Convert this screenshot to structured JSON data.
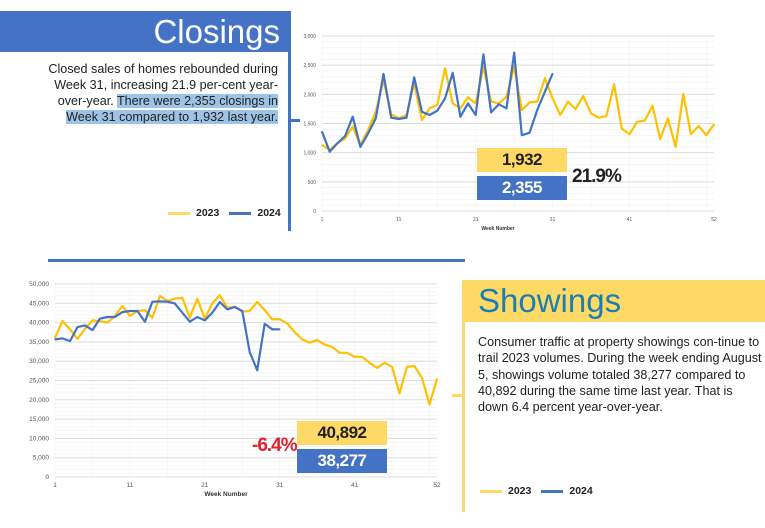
{
  "closings": {
    "title": "Closings",
    "text_plain": "Closed sales of homes rebounded during Week 31, increasing 21.9 per-cent year-over-year. ",
    "text_highlight": "There were 2,355 closings in Week 31 compared to 1,932 last year.",
    "legend": [
      "2023",
      "2024"
    ],
    "callout_2023": "1,932",
    "callout_2024": "2,355",
    "change": "21.9%"
  },
  "showings": {
    "title": "Showings",
    "text": "Consumer traffic at property showings con-tinue to trail 2023 volumes. During the week ending August 5, showings volume totaled 38,277 compared to 40,892 during the same time last year. That is down 6.4 percent year-over-year.",
    "legend": [
      "2023",
      "2024"
    ],
    "callout_2023": "40,892",
    "callout_2024": "38,277",
    "change": "-6.4%"
  },
  "colors": {
    "y2023": "#ffc000",
    "y2024": "#4472c4",
    "negative": "#e0202a"
  },
  "chart_data": [
    {
      "type": "line",
      "title": "Closings",
      "xlabel": "Week Number",
      "ylabel": "",
      "ylim": [
        0,
        3000
      ],
      "yticks": [
        0,
        500,
        1000,
        1500,
        2000,
        2500,
        3000
      ],
      "ytick_labels": [
        "0",
        "500",
        "1,000",
        "1,500",
        "2,000",
        "2,500",
        "3,000"
      ],
      "xlim": [
        1,
        52
      ],
      "xticks": [
        1,
        11,
        21,
        31,
        41,
        52
      ],
      "xtick_labels": [
        "1",
        "11",
        "21",
        "31",
        "41",
        "52"
      ],
      "grid": true,
      "series": [
        {
          "name": "2023",
          "values": [
            1130,
            1050,
            1160,
            1245,
            1445,
            1130,
            1390,
            1700,
            2245,
            1657,
            1590,
            1645,
            2190,
            1560,
            1760,
            1817,
            2445,
            1845,
            1760,
            1950,
            1845,
            2475,
            1875,
            1845,
            1960,
            2475,
            1730,
            1860,
            1875,
            2275,
            1932,
            1645,
            1875,
            1745,
            1970,
            1675,
            1600,
            1630,
            2170,
            1415,
            1315,
            1530,
            1550,
            1805,
            1235,
            1590,
            1100,
            2005,
            1315,
            1455,
            1300,
            1485
          ]
        },
        {
          "name": "2024",
          "values": [
            1360,
            1017,
            1160,
            1285,
            1617,
            1100,
            1330,
            1590,
            2350,
            1600,
            1577,
            1600,
            2290,
            1700,
            1645,
            1720,
            1930,
            2370,
            1617,
            1845,
            1645,
            2685,
            1690,
            1830,
            1760,
            2715,
            1300,
            1340,
            1730,
            2045,
            2355
          ]
        }
      ]
    },
    {
      "type": "line",
      "title": "Showings",
      "xlabel": "Week Number",
      "ylabel": "",
      "ylim": [
        0,
        50000
      ],
      "yticks": [
        0,
        5000,
        10000,
        15000,
        20000,
        25000,
        30000,
        35000,
        40000,
        45000,
        50000
      ],
      "ytick_labels": [
        "0",
        "5,000",
        "10,000",
        "15,000",
        "20,000",
        "25,000",
        "30,000",
        "35,000",
        "40,000",
        "45,000",
        "50,000"
      ],
      "xlim": [
        1,
        52
      ],
      "xticks": [
        1,
        11,
        21,
        31,
        41,
        52
      ],
      "xtick_labels": [
        "1",
        "11",
        "21",
        "31",
        "41",
        "52"
      ],
      "grid": true,
      "series": [
        {
          "name": "2023",
          "values": [
            36070,
            40400,
            38240,
            35800,
            38400,
            40570,
            40400,
            39970,
            41700,
            44300,
            41700,
            43000,
            43250,
            41260,
            46890,
            45600,
            46200,
            46450,
            41260,
            46200,
            41000,
            44980,
            47060,
            43860,
            44120,
            42820,
            43000,
            45330,
            43250,
            40830,
            40892,
            39790,
            37540,
            35640,
            34780,
            35470,
            34350,
            33740,
            32180,
            32180,
            31140,
            31140,
            29580,
            28290,
            29580,
            28550,
            21630,
            28550,
            28720,
            25690,
            18770,
            25430
          ]
        },
        {
          "name": "2024",
          "values": [
            35640,
            35900,
            35200,
            38840,
            39270,
            38060,
            41000,
            41440,
            41440,
            42730,
            43000,
            43000,
            40230,
            45420,
            45500,
            45420,
            44980,
            42560,
            40230,
            41440,
            40570,
            42560,
            45330,
            43430,
            44030,
            43000,
            32350,
            27680,
            39700,
            38240,
            38277
          ]
        }
      ]
    }
  ]
}
